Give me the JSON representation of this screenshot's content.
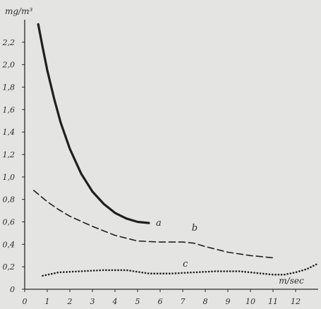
{
  "chart_data": {
    "type": "line",
    "title": "",
    "xlabel": "m/sec",
    "ylabel": "mg/m³",
    "xlim": [
      0,
      13
    ],
    "ylim": [
      0,
      2.4
    ],
    "grid": false,
    "x_ticks": [
      "0",
      "1",
      "2",
      "3",
      "4",
      "5",
      "6",
      "7",
      "8",
      "9",
      "10",
      "11",
      "12"
    ],
    "y_ticks": [
      "0",
      "0,2",
      "0,4",
      "0,6",
      "0,8",
      "1,0",
      "1,2",
      "1,4",
      "1,6",
      "1,8",
      "2,0",
      "2,2"
    ],
    "series": [
      {
        "name": "a",
        "style": "solid-thick",
        "color": "#1f1f1f",
        "x": [
          0.6,
          0.8,
          1.0,
          1.3,
          1.6,
          2.0,
          2.5,
          3.0,
          3.5,
          4.0,
          4.5,
          5.0,
          5.5
        ],
        "y": [
          2.36,
          2.15,
          1.95,
          1.7,
          1.48,
          1.25,
          1.03,
          0.87,
          0.76,
          0.68,
          0.63,
          0.6,
          0.59
        ]
      },
      {
        "name": "b",
        "style": "dashed",
        "color": "#1f1f1f",
        "x": [
          0.4,
          1.0,
          1.5,
          2.0,
          3.0,
          4.0,
          5.0,
          6.0,
          7.0,
          7.5,
          8.0,
          9.0,
          10.0,
          11.0
        ],
        "y": [
          0.88,
          0.78,
          0.71,
          0.65,
          0.56,
          0.48,
          0.43,
          0.42,
          0.42,
          0.41,
          0.38,
          0.33,
          0.3,
          0.28
        ]
      },
      {
        "name": "c",
        "style": "dotted",
        "color": "#1f1f1f",
        "x": [
          0.8,
          1.5,
          2.5,
          3.5,
          4.5,
          5.5,
          6.5,
          7.5,
          8.5,
          9.5,
          10.5,
          11.0,
          11.5,
          12.0,
          12.5,
          13.0
        ],
        "y": [
          0.12,
          0.15,
          0.16,
          0.17,
          0.17,
          0.14,
          0.14,
          0.15,
          0.16,
          0.16,
          0.14,
          0.13,
          0.13,
          0.15,
          0.18,
          0.23
        ]
      }
    ]
  }
}
